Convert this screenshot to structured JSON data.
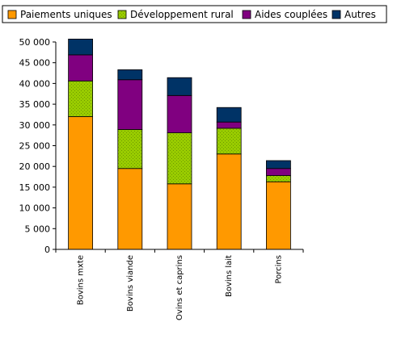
{
  "chart_data": {
    "type": "bar",
    "stacked": true,
    "categories": [
      "Bovins mxte",
      "Bovins viande",
      "Ovins et caprins",
      "Bovins lait",
      "Porcins"
    ],
    "series": [
      {
        "name": "Paiements uniques",
        "color": "#FF9900",
        "values": [
          32000,
          19500,
          15800,
          23000,
          16300
        ]
      },
      {
        "name": "Développement rural",
        "color": "#99CC00",
        "values": [
          8600,
          9400,
          12300,
          6200,
          1500
        ]
      },
      {
        "name": "Aides couplées",
        "color": "#800080",
        "values": [
          6300,
          12000,
          9000,
          1500,
          1700
        ]
      },
      {
        "name": "Autres",
        "color": "#003366",
        "values": [
          3800,
          2400,
          4300,
          3500,
          1900
        ]
      }
    ],
    "ylim": [
      0,
      50000
    ],
    "yticks": [
      "0",
      "5 000",
      "10 000",
      "15 000",
      "20 000",
      "25 000",
      "30 000",
      "35 000",
      "40 000",
      "45 000",
      "50 000"
    ],
    "xlabel": "",
    "ylabel": "",
    "title": "",
    "grid": false,
    "legend_position": "top"
  }
}
